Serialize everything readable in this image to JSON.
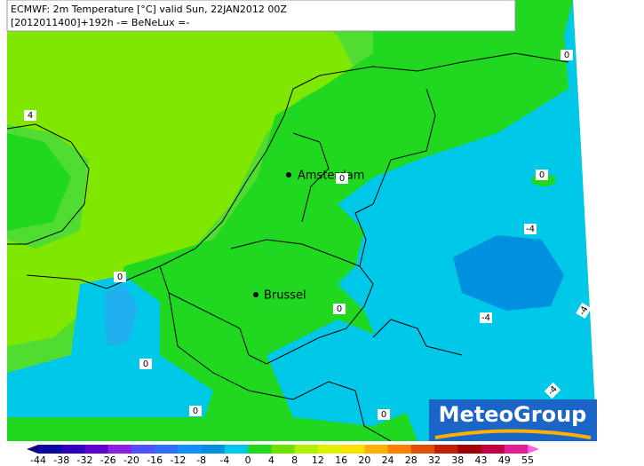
{
  "header": {
    "line1": "ECMWF: 2m Temperature [°C] valid Sun, 22JAN2012 00Z",
    "line2": "[2012011400]+192h -= BeNeLux =-"
  },
  "cities": [
    "Amsterdam",
    "Brussel"
  ],
  "contour_labels": [
    0,
    4,
    0,
    0,
    -4,
    0,
    0,
    -4,
    -4,
    0,
    0,
    0,
    -4
  ],
  "logo": "MeteoGroup",
  "colorbar": {
    "labels": [
      -44,
      -38,
      -32,
      -26,
      -20,
      -16,
      -12,
      -8,
      -4,
      0,
      4,
      8,
      12,
      16,
      20,
      24,
      28,
      32,
      38,
      43,
      49,
      55
    ],
    "colors": [
      "#1a0080",
      "#0a0aa0",
      "#3000c0",
      "#6000d0",
      "#8a20e0",
      "#5050ff",
      "#3070ff",
      "#1090ff",
      "#0090e0",
      "#00c8e8",
      "#20d820",
      "#70e000",
      "#b0f000",
      "#e0f000",
      "#ffe000",
      "#ffb000",
      "#ff8000",
      "#e05000",
      "#c02000",
      "#a00000",
      "#c00040",
      "#e02090",
      "#ff60e0"
    ]
  }
}
